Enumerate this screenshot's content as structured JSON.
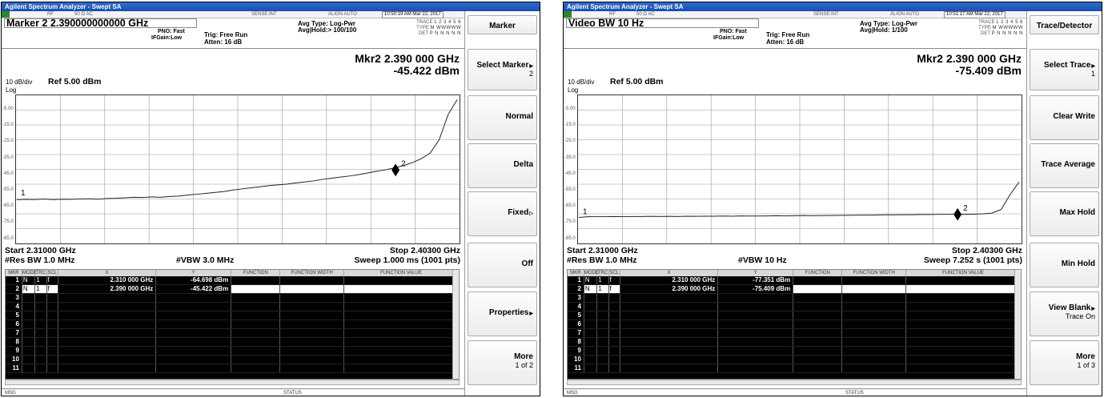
{
  "left": {
    "window_title": "Agilent Spectrum Analyzer - Swept SA",
    "ctrl": {
      "rf": "RF",
      "ohm": "50 Ω AC",
      "sense": "SENSE:INT",
      "align": "ALIGN AUTO",
      "time": "10:50:19 AM Mar 22, 2017"
    },
    "header_label": "Marker 2  2.390000000000 GHz",
    "pno": "PNO: Fast",
    "ifgain": "IFGain:Low",
    "trig": "Trig: Free Run",
    "atten": "Atten: 16 dB",
    "avgtype": "Avg Type: Log-Pwr",
    "avghold": "Avg|Hold:> 100/100",
    "trace_label": "TRACE",
    "trace_nums": "1 2 3 4 5 6",
    "type_label": "TYPE",
    "type_val": "M WWWWW",
    "det_label": "DET",
    "det_val": "P N N N N N",
    "mkr_freq": "Mkr2 2.390 000 GHz",
    "mkr_amp": "-45.422 dBm",
    "scale": "10 dB/div",
    "ref": "Ref 5.00 dBm",
    "log": "Log",
    "yticks": [
      "-5.00",
      "-15.0",
      "-25.0",
      "-35.0",
      "-45.0",
      "-55.0",
      "-65.0",
      "-75.0",
      "-85.0"
    ],
    "marker1_tag": "1",
    "marker2_tag": "2",
    "start": "Start 2.31000 GHz",
    "stop": "Stop 2.40300 GHz",
    "resbw": "#Res BW 1.0 MHz",
    "vbw": "#VBW 3.0 MHz",
    "sweep": "Sweep  1.000 ms (1001 pts)",
    "table_headers": [
      "MKR",
      "MODE",
      "TRC",
      "SCL",
      "X",
      "Y",
      "FUNCTION",
      "FUNCTION WIDTH",
      "FUNCTION VALUE"
    ],
    "rows": [
      {
        "n": "1",
        "mode": "N",
        "trc": "1",
        "scl": "f",
        "x": "2.310 000 GHz",
        "y": "-64.698 dBm"
      },
      {
        "n": "2",
        "mode": "N",
        "trc": "1",
        "scl": "f",
        "x": "2.390 000 GHz",
        "y": "-45.422 dBm"
      },
      {
        "n": "3"
      },
      {
        "n": "4"
      },
      {
        "n": "5"
      },
      {
        "n": "6"
      },
      {
        "n": "7"
      },
      {
        "n": "8"
      },
      {
        "n": "9"
      },
      {
        "n": "10"
      },
      {
        "n": "11"
      }
    ],
    "msg": "MSG",
    "status": "STATUS",
    "softkeys": [
      {
        "label": "Marker",
        "sub": ""
      },
      {
        "label": "Select Marker",
        "sub": "2"
      },
      {
        "label": "Normal",
        "sub": ""
      },
      {
        "label": "Delta",
        "sub": ""
      },
      {
        "label": "Fixed",
        "sub": ""
      },
      {
        "label": "Off",
        "sub": ""
      },
      {
        "label": "Properties",
        "sub": ""
      },
      {
        "label": "More",
        "sub": "1 of 2"
      }
    ],
    "trace_points_dbm": [
      -65.5,
      -65.2,
      -65.3,
      -65.0,
      -65.4,
      -65.1,
      -65.2,
      -65.0,
      -64.9,
      -65.1,
      -64.7,
      -64.5,
      -64.2,
      -63.8,
      -64.0,
      -63.6,
      -63.8,
      -63.3,
      -63.0,
      -62.4,
      -61.8,
      -61.2,
      -60.6,
      -60.0,
      -59.0,
      -58.2,
      -57.5,
      -56.8,
      -56.0,
      -55.5,
      -55.0,
      -54.2,
      -53.5,
      -52.8,
      -51.8,
      -51.0,
      -50.2,
      -49.5,
      -48.6,
      -47.5,
      -46.3,
      -45.4,
      -44.0,
      -42.5,
      -40.5,
      -37.8,
      -34.0,
      -25.0,
      -8.0,
      2.0
    ]
  },
  "right": {
    "window_title": "Agilent Spectrum Analyzer - Swept SA",
    "ctrl": {
      "rf": "RF",
      "ohm": "50 Ω AC",
      "sense": "SENSE:INT",
      "align": "ALIGN AUTO",
      "time": "10:51:17 AM Mar 22, 2017"
    },
    "header_label": "Video BW 10 Hz",
    "pno": "PNO: Fast",
    "ifgain": "IFGain:Low",
    "trig": "Trig: Free Run",
    "atten": "Atten: 16 dB",
    "avgtype": "Avg Type: Log-Pwr",
    "avghold": "Avg|Hold: 1/100",
    "trace_label": "TRACE",
    "trace_nums": "1 2 3 4 5 6",
    "type_label": "TYPE",
    "type_val": "M WWWWW",
    "det_label": "DET",
    "det_val": "P N N N N N",
    "mkr_freq": "Mkr2 2.390 000 GHz",
    "mkr_amp": "-75.409 dBm",
    "scale": "10 dB/div",
    "ref": "Ref 5.00 dBm",
    "log": "Log",
    "yticks": [
      "-5.00",
      "-15.0",
      "-25.0",
      "-35.0",
      "-45.0",
      "-55.0",
      "-65.0",
      "-75.0",
      "-85.0"
    ],
    "marker1_tag": "1",
    "marker2_tag": "2",
    "start": "Start 2.31000 GHz",
    "stop": "Stop 2.40300 GHz",
    "resbw": "#Res BW 1.0 MHz",
    "vbw": "#VBW 10 Hz",
    "sweep": "Sweep  7.252 s (1001 pts)",
    "table_headers": [
      "MKR",
      "MODE",
      "TRC",
      "SCL",
      "X",
      "Y",
      "FUNCTION",
      "FUNCTION WIDTH",
      "FUNCTION VALUE"
    ],
    "rows": [
      {
        "n": "1",
        "mode": "N",
        "trc": "1",
        "scl": "f",
        "x": "2.310 000 GHz",
        "y": "-77.351 dBm"
      },
      {
        "n": "2",
        "mode": "N",
        "trc": "1",
        "scl": "f",
        "x": "2.390 000 GHz",
        "y": "-75.409 dBm"
      },
      {
        "n": "3"
      },
      {
        "n": "4"
      },
      {
        "n": "5"
      },
      {
        "n": "6"
      },
      {
        "n": "7"
      },
      {
        "n": "8"
      },
      {
        "n": "9"
      },
      {
        "n": "10"
      },
      {
        "n": "11"
      }
    ],
    "msg": "MSG",
    "status": "STATUS",
    "softkeys": [
      {
        "label": "Trace/Detector",
        "sub": ""
      },
      {
        "label": "Select Trace",
        "sub": "1"
      },
      {
        "label": "Clear Write",
        "sub": ""
      },
      {
        "label": "Trace Average",
        "sub": ""
      },
      {
        "label": "Max Hold",
        "sub": ""
      },
      {
        "label": "Min Hold",
        "sub": ""
      },
      {
        "label": "View Blank",
        "sub": "Trace On"
      },
      {
        "label": "More",
        "sub": "1 of 3"
      }
    ],
    "trace_points_dbm": [
      -77.4,
      -77.0,
      -76.9,
      -76.9,
      -76.8,
      -76.9,
      -76.8,
      -76.8,
      -76.7,
      -76.8,
      -76.7,
      -76.8,
      -76.6,
      -76.7,
      -76.6,
      -76.6,
      -76.5,
      -76.6,
      -76.4,
      -76.5,
      -76.5,
      -76.4,
      -76.3,
      -76.4,
      -76.3,
      -76.2,
      -76.3,
      -76.1,
      -76.2,
      -76.0,
      -76.0,
      -75.9,
      -75.9,
      -75.8,
      -75.7,
      -75.7,
      -75.6,
      -75.6,
      -75.5,
      -75.5,
      -75.4,
      -75.4,
      -75.3,
      -75.3,
      -75.2,
      -75.0,
      -74.5,
      -72.0,
      -62.0,
      -53.5
    ]
  }
}
